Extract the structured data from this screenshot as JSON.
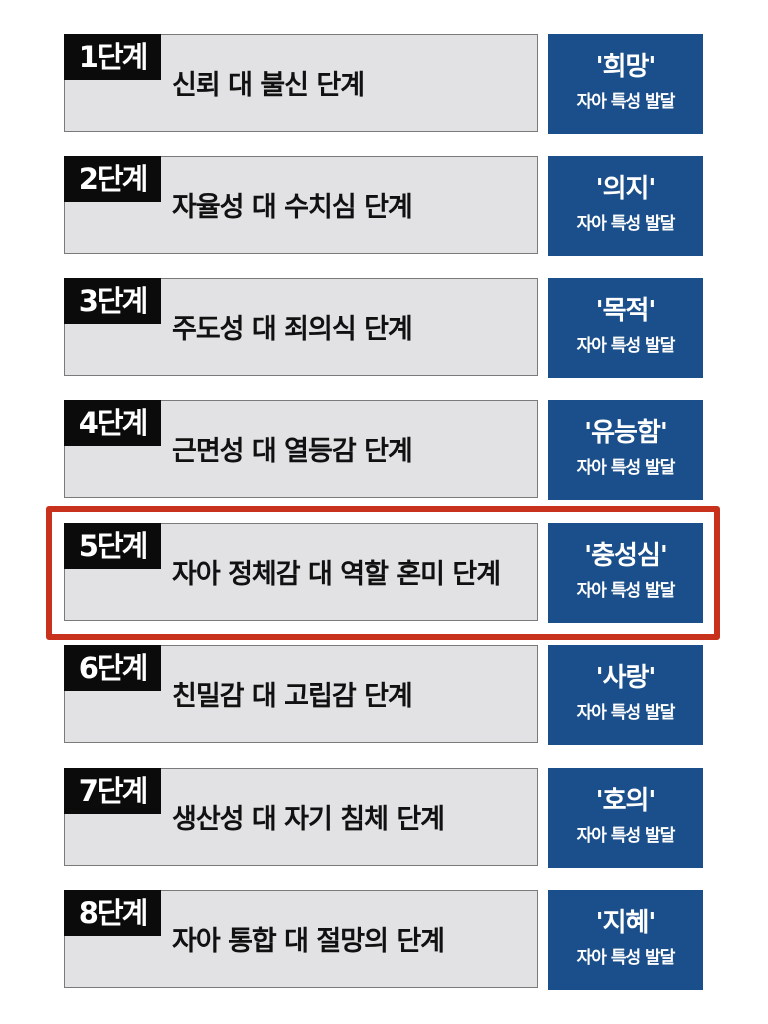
{
  "stages": [
    {
      "tag": "1단계",
      "label": "신뢰 대 불신 단계",
      "virtue": "'희망'",
      "caption": "자아 특성 발달"
    },
    {
      "tag": "2단계",
      "label": "자율성 대 수치심 단계",
      "virtue": "'의지'",
      "caption": "자아 특성 발달"
    },
    {
      "tag": "3단계",
      "label": "주도성 대 죄의식 단계",
      "virtue": "'목적'",
      "caption": "자아 특성 발달"
    },
    {
      "tag": "4단계",
      "label": "근면성 대 열등감 단계",
      "virtue": "'유능함'",
      "caption": "자아 특성 발달"
    },
    {
      "tag": "5단계",
      "label": "자아 정체감 대 역할 혼미 단계",
      "virtue": "'충성심'",
      "caption": "자아 특성 발달"
    },
    {
      "tag": "6단계",
      "label": "친밀감 대 고립감 단계",
      "virtue": "'사랑'",
      "caption": "자아 특성 발달"
    },
    {
      "tag": "7단계",
      "label": "생산성 대 자기 침체 단계",
      "virtue": "'호의'",
      "caption": "자아 특성 발달"
    },
    {
      "tag": "8단계",
      "label": "자아 통합 대 절망의 단계",
      "virtue": "'지혜'",
      "caption": "자아 특성 발달"
    }
  ],
  "highlighted_stage": 5,
  "colors": {
    "stage_box": "#e2e2e4",
    "stage_tag": "#0b0b0b",
    "virtue_box": "#1a4f8b",
    "highlight": "#c8321c"
  }
}
